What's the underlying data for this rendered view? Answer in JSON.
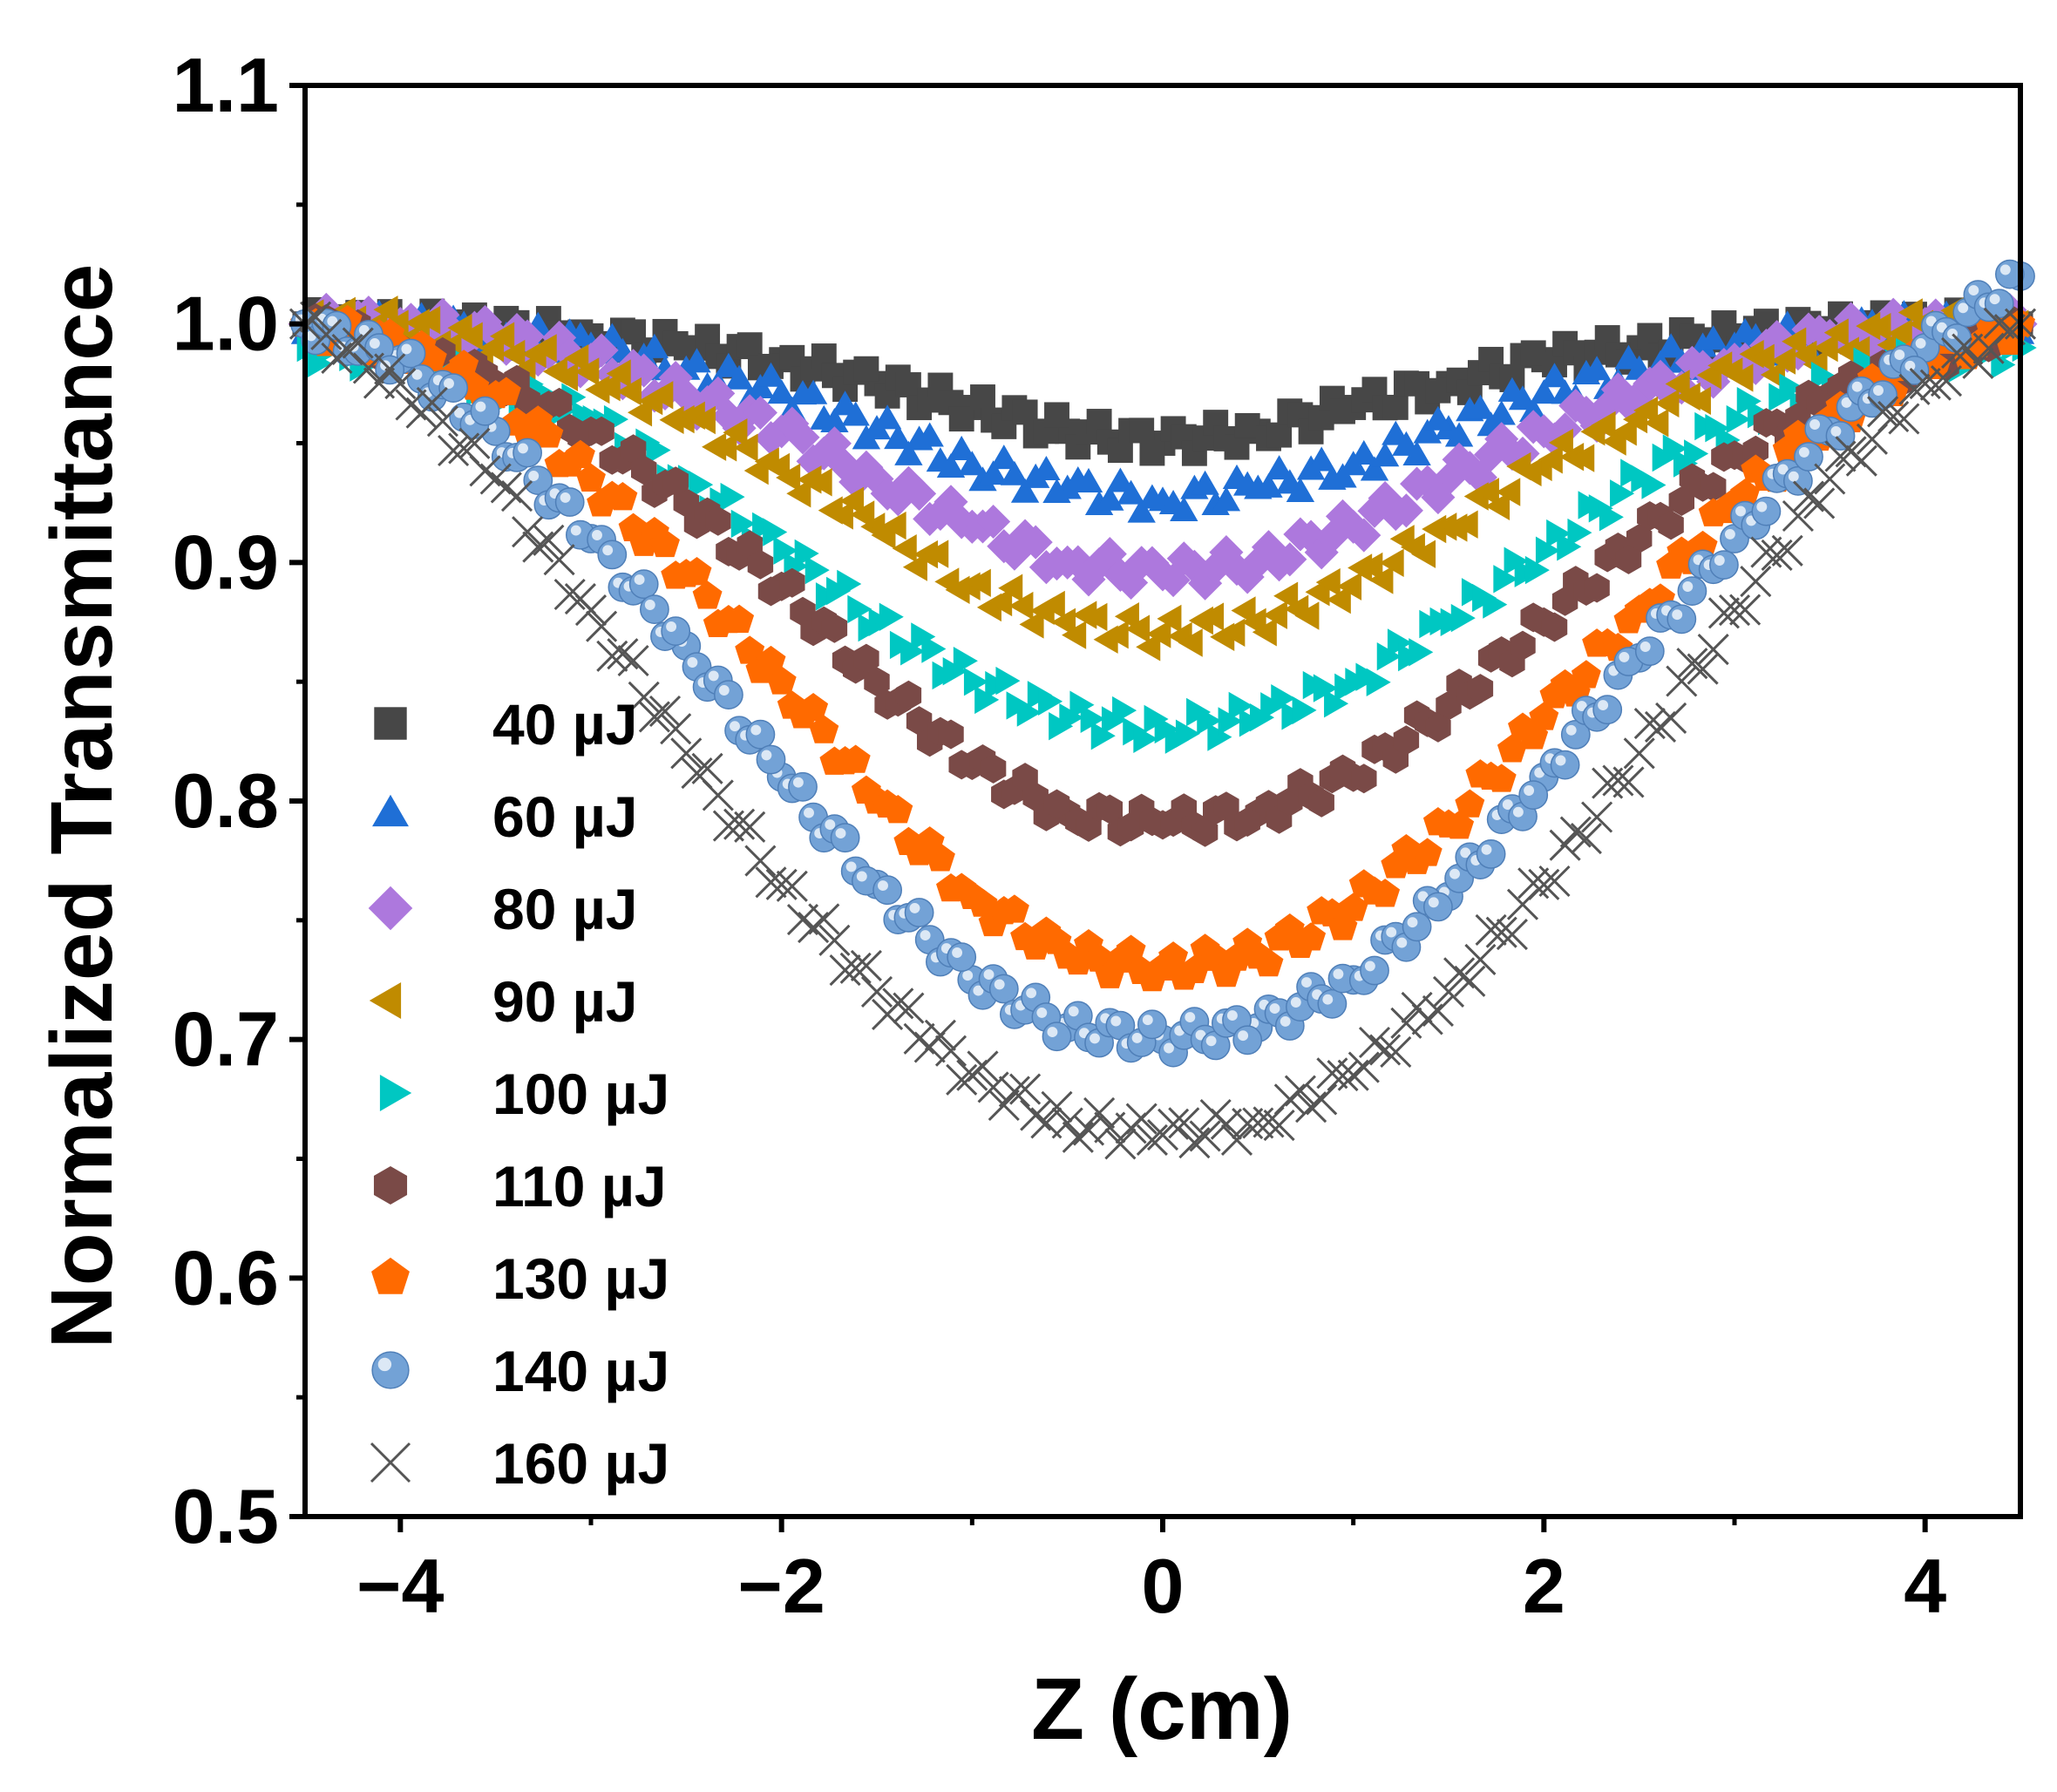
{
  "chart_data": {
    "type": "scatter",
    "title": "",
    "xlabel": "Z (cm)",
    "ylabel": "Normalized Transmittance",
    "xlim": [
      -4.5,
      4.5
    ],
    "ylim": [
      0.5,
      1.1
    ],
    "x_ticks": [
      -4,
      -2,
      0,
      2,
      4
    ],
    "x_tick_labels": [
      "−4",
      "−2",
      "0",
      "2",
      "4"
    ],
    "y_ticks": [
      0.5,
      0.6,
      0.7,
      0.8,
      0.9,
      1.0,
      1.1
    ],
    "y_tick_labels": [
      "0.5",
      "0.6",
      "0.7",
      "0.8",
      "0.9",
      "1.0",
      "1.1"
    ],
    "grid": false,
    "legend_position": "left",
    "series": [
      {
        "name": "40 µJ",
        "marker": "square",
        "color": "#474747",
        "x": [
          -4.5,
          -4,
          -3.5,
          -3,
          -2.5,
          -2,
          -1.5,
          -1,
          -0.5,
          0,
          0.5,
          1,
          1.5,
          2,
          2.5,
          3,
          3.5,
          4,
          4.5
        ],
        "y": [
          1.0,
          1.0,
          0.998,
          0.995,
          0.99,
          0.985,
          0.975,
          0.965,
          0.955,
          0.95,
          0.955,
          0.965,
          0.975,
          0.985,
          0.99,
          0.995,
          0.998,
          1.0,
          1.0
        ]
      },
      {
        "name": "60 µJ",
        "marker": "triangle-up",
        "color": "#1f6fd6",
        "x": [
          -4.5,
          -4,
          -3.5,
          -3,
          -2.5,
          -2,
          -1.5,
          -1,
          -0.5,
          0,
          0.5,
          1,
          1.5,
          2,
          2.5,
          3,
          3.5,
          4,
          4.5
        ],
        "y": [
          0.995,
          0.998,
          0.995,
          0.99,
          0.98,
          0.97,
          0.955,
          0.94,
          0.93,
          0.925,
          0.93,
          0.94,
          0.955,
          0.97,
          0.98,
          0.99,
          0.995,
          0.998,
          0.995
        ]
      },
      {
        "name": "80 µJ",
        "marker": "diamond",
        "color": "#ad78dd",
        "x": [
          -4.5,
          -4,
          -3.5,
          -3,
          -2.5,
          -2,
          -1.5,
          -1,
          -0.5,
          0,
          0.5,
          1,
          1.5,
          2,
          2.5,
          3,
          3.5,
          4,
          4.5
        ],
        "y": [
          1.0,
          1.0,
          0.995,
          0.985,
          0.97,
          0.955,
          0.935,
          0.915,
          0.9,
          0.895,
          0.9,
          0.915,
          0.935,
          0.955,
          0.97,
          0.985,
          0.995,
          1.0,
          1.0
        ]
      },
      {
        "name": "90 µJ",
        "marker": "triangle-left",
        "color": "#c08b00",
        "x": [
          -4.5,
          -4,
          -3.5,
          -3,
          -2.5,
          -2,
          -1.5,
          -1,
          -0.5,
          0,
          0.5,
          1,
          1.5,
          2,
          2.5,
          3,
          3.5,
          4,
          4.5
        ],
        "y": [
          1.0,
          1.0,
          0.99,
          0.98,
          0.96,
          0.94,
          0.915,
          0.89,
          0.875,
          0.87,
          0.875,
          0.89,
          0.915,
          0.94,
          0.96,
          0.98,
          0.99,
          1.0,
          1.0
        ]
      },
      {
        "name": "100 µJ",
        "marker": "triangle-right",
        "color": "#00c7c2",
        "x": [
          -4.5,
          -4,
          -3.5,
          -3,
          -2.5,
          -2,
          -1.5,
          -1,
          -0.5,
          0,
          0.5,
          1,
          1.5,
          2,
          2.5,
          3,
          3.5,
          4,
          4.5
        ],
        "y": [
          0.99,
          0.985,
          0.975,
          0.96,
          0.935,
          0.905,
          0.875,
          0.85,
          0.835,
          0.83,
          0.835,
          0.85,
          0.875,
          0.905,
          0.935,
          0.96,
          0.975,
          0.985,
          0.99
        ]
      },
      {
        "name": "110 µJ",
        "marker": "hexagon",
        "color": "#7a4a47",
        "x": [
          -4.5,
          -4,
          -3.5,
          -3,
          -2.5,
          -2,
          -1.5,
          -1,
          -0.5,
          0,
          0.5,
          1,
          1.5,
          2,
          2.5,
          3,
          3.5,
          4,
          4.5
        ],
        "y": [
          1.0,
          0.99,
          0.975,
          0.955,
          0.925,
          0.89,
          0.85,
          0.815,
          0.795,
          0.79,
          0.795,
          0.81,
          0.84,
          0.875,
          0.91,
          0.945,
          0.97,
          0.985,
          1.0
        ]
      },
      {
        "name": "130 µJ",
        "marker": "pentagon",
        "color": "#ff6a00",
        "x": [
          -4.5,
          -4,
          -3.5,
          -3,
          -2.5,
          -2,
          -1.5,
          -1,
          -0.5,
          0,
          0.5,
          1,
          1.5,
          2,
          2.5,
          3,
          3.5,
          4,
          4.5
        ],
        "y": [
          1.0,
          0.99,
          0.97,
          0.935,
          0.895,
          0.85,
          0.8,
          0.76,
          0.735,
          0.73,
          0.735,
          0.755,
          0.79,
          0.835,
          0.88,
          0.925,
          0.96,
          0.985,
          1.0
        ]
      },
      {
        "name": "140 µJ",
        "marker": "sphere",
        "color": "#73a2d6",
        "x": [
          -4.5,
          -4,
          -3.5,
          -3,
          -2.5,
          -2,
          -1.5,
          -1,
          -0.5,
          0,
          0.5,
          1,
          1.5,
          2,
          2.5,
          3,
          3.5,
          4,
          4.5
        ],
        "y": [
          1.0,
          0.985,
          0.955,
          0.91,
          0.865,
          0.81,
          0.765,
          0.725,
          0.705,
          0.7,
          0.705,
          0.725,
          0.76,
          0.81,
          0.86,
          0.91,
          0.955,
          0.99,
          1.02
        ]
      },
      {
        "name": "160 µJ",
        "marker": "x",
        "color": "#555555",
        "x": [
          -4.5,
          -4,
          -3.5,
          -3,
          -2.5,
          -2,
          -1.5,
          -1,
          -0.5,
          0,
          0.5,
          1,
          1.5,
          2,
          2.5,
          3,
          3.5,
          4,
          4.5
        ],
        "y": [
          1.0,
          0.975,
          0.935,
          0.88,
          0.82,
          0.765,
          0.72,
          0.685,
          0.665,
          0.66,
          0.665,
          0.685,
          0.72,
          0.765,
          0.82,
          0.88,
          0.935,
          0.975,
          1.0
        ]
      }
    ]
  }
}
